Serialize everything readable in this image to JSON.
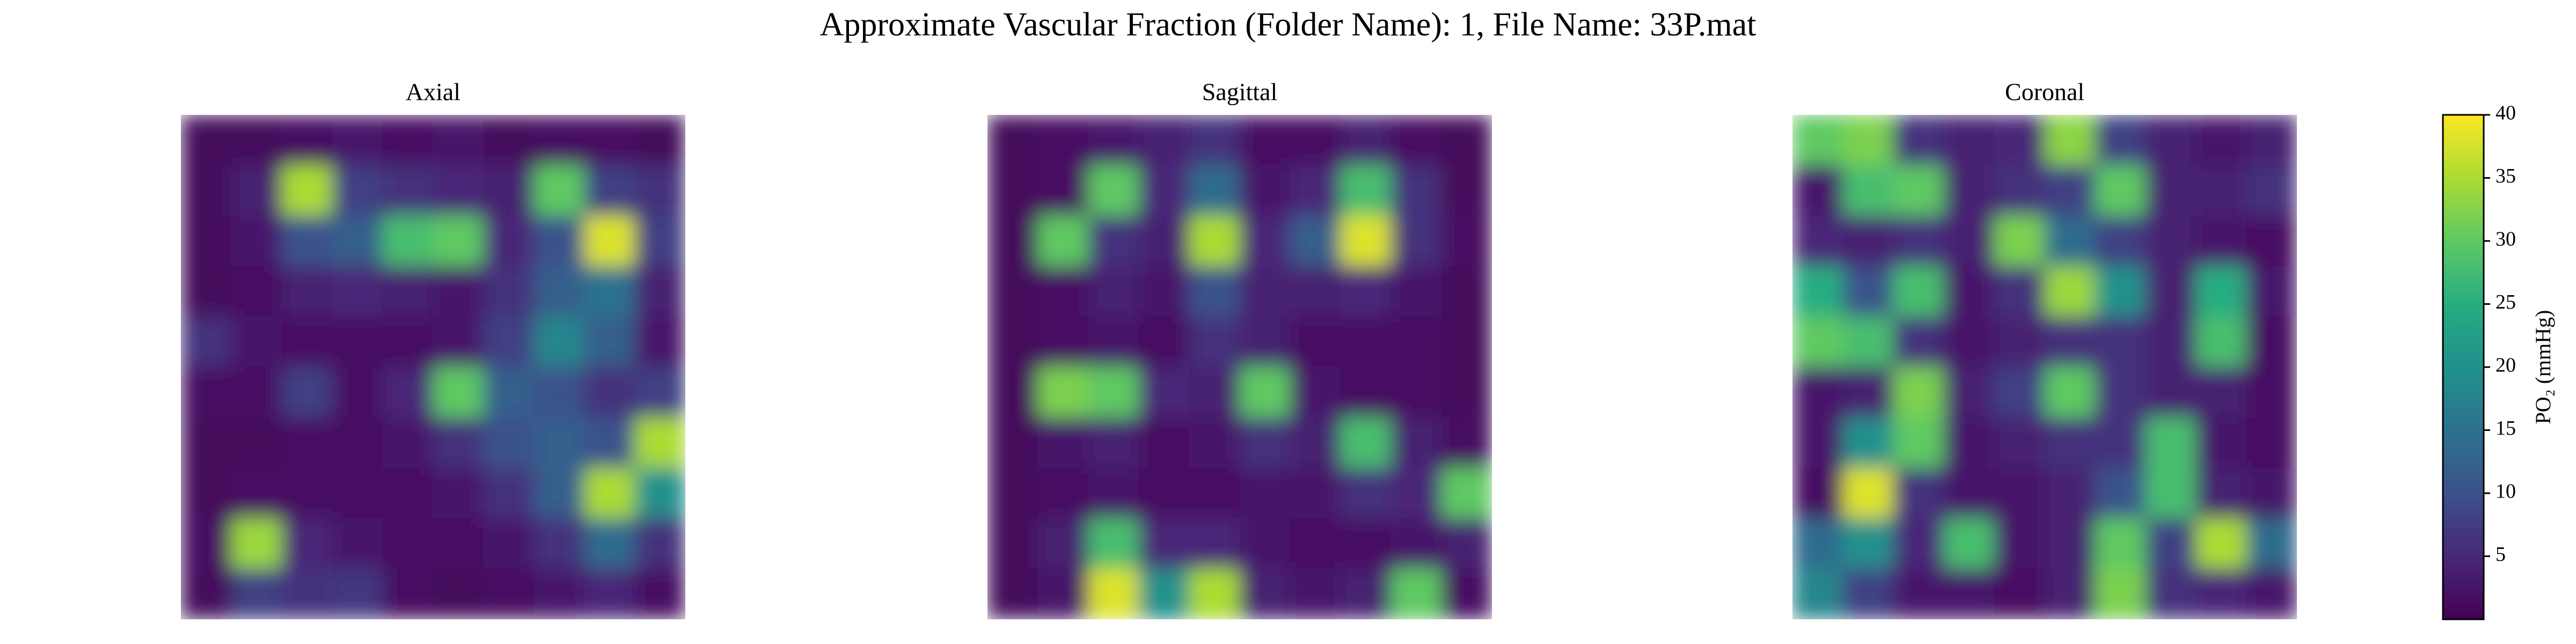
{
  "chart_data": {
    "type": "heatmap",
    "title": "Approximate Vascular Fraction (Folder Name): 1, File Name: 33P.mat",
    "colormap": "viridis",
    "clim": [
      0,
      40
    ],
    "cticks": [
      5,
      10,
      15,
      20,
      25,
      30,
      35,
      40
    ],
    "colorbar_label": "PO₂ (mmHg)",
    "panels": [
      {
        "title": "Axial",
        "values": [
          [
            1,
            1,
            2,
            3,
            2,
            3,
            1,
            2,
            2,
            1
          ],
          [
            1,
            4,
            35,
            8,
            6,
            5,
            4,
            30,
            8,
            6
          ],
          [
            1,
            3,
            10,
            12,
            28,
            30,
            5,
            10,
            38,
            8
          ],
          [
            1,
            2,
            4,
            5,
            4,
            3,
            6,
            12,
            15,
            4
          ],
          [
            6,
            3,
            2,
            2,
            2,
            3,
            8,
            18,
            12,
            3
          ],
          [
            2,
            2,
            8,
            2,
            5,
            30,
            12,
            10,
            6,
            8
          ],
          [
            1,
            1,
            2,
            2,
            3,
            6,
            10,
            12,
            10,
            35
          ],
          [
            1,
            2,
            2,
            2,
            2,
            3,
            6,
            12,
            35,
            20
          ],
          [
            2,
            34,
            5,
            3,
            2,
            2,
            3,
            6,
            14,
            6
          ],
          [
            1,
            8,
            6,
            7,
            2,
            1,
            2,
            3,
            5,
            2
          ]
        ]
      },
      {
        "title": "Sagittal",
        "values": [
          [
            1,
            2,
            3,
            4,
            6,
            2,
            2,
            4,
            2,
            1
          ],
          [
            1,
            2,
            30,
            5,
            14,
            3,
            5,
            28,
            6,
            1
          ],
          [
            1,
            30,
            6,
            4,
            35,
            5,
            12,
            38,
            6,
            2
          ],
          [
            1,
            2,
            4,
            3,
            10,
            4,
            4,
            5,
            3,
            1
          ],
          [
            1,
            2,
            3,
            2,
            6,
            4,
            2,
            2,
            2,
            1
          ],
          [
            1,
            32,
            30,
            5,
            4,
            30,
            3,
            2,
            2,
            1
          ],
          [
            1,
            3,
            4,
            2,
            3,
            6,
            4,
            28,
            4,
            2
          ],
          [
            1,
            2,
            3,
            2,
            2,
            3,
            3,
            6,
            5,
            30
          ],
          [
            1,
            4,
            28,
            5,
            5,
            3,
            2,
            2,
            3,
            4
          ],
          [
            1,
            3,
            38,
            20,
            35,
            4,
            3,
            4,
            30,
            2
          ]
        ]
      },
      {
        "title": "Coronal",
        "values": [
          [
            30,
            32,
            6,
            4,
            5,
            33,
            8,
            4,
            3,
            4
          ],
          [
            3,
            28,
            30,
            4,
            6,
            8,
            30,
            4,
            4,
            6
          ],
          [
            5,
            4,
            6,
            4,
            32,
            14,
            8,
            4,
            3,
            2
          ],
          [
            25,
            10,
            28,
            3,
            6,
            34,
            20,
            4,
            25,
            3
          ],
          [
            30,
            28,
            6,
            3,
            4,
            6,
            6,
            4,
            28,
            2
          ],
          [
            3,
            4,
            32,
            4,
            8,
            30,
            6,
            4,
            4,
            2
          ],
          [
            3,
            20,
            30,
            3,
            4,
            6,
            6,
            28,
            3,
            2
          ],
          [
            2,
            38,
            6,
            3,
            3,
            4,
            10,
            28,
            4,
            3
          ],
          [
            14,
            20,
            5,
            28,
            3,
            4,
            30,
            8,
            35,
            14
          ],
          [
            18,
            8,
            3,
            3,
            2,
            4,
            32,
            6,
            5,
            3
          ]
        ]
      }
    ]
  }
}
